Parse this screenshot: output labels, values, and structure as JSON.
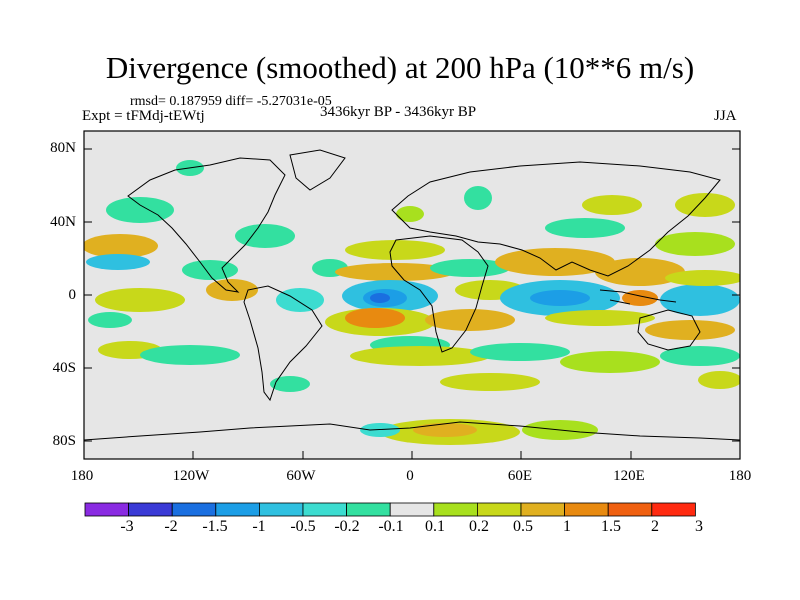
{
  "title": "Divergence (smoothed) at 200 hPa (10**6 m/s)",
  "stats": "rmsd= 0.187959 diff= -5.27031e-05",
  "experiment": "Expt = tFMdj-tEWtj",
  "period": "3436kyr BP - 3436kyr BP",
  "season": "JJA",
  "map": {
    "lat_ticks": [
      "80N",
      "40N",
      "0",
      "40S",
      "80S"
    ],
    "lon_ticks": [
      "180",
      "120W",
      "60W",
      "0",
      "60E",
      "120E",
      "180"
    ],
    "lat_range": [
      -90,
      90
    ],
    "lon_range": [
      -180,
      180
    ]
  },
  "colorbar": {
    "labels": [
      "-3",
      "-2",
      "-1.5",
      "-1",
      "-0.5",
      "-0.2",
      "-0.1",
      "0.1",
      "0.2",
      "0.5",
      "1",
      "1.5",
      "2",
      "3"
    ],
    "colors": [
      "#8a2be2",
      "#3a3ad6",
      "#1a6fe0",
      "#1c9ee6",
      "#2fc0e0",
      "#3cdcd0",
      "#33e0a0",
      "#e6e6e6",
      "#a8e01e",
      "#c8d81a",
      "#e0b020",
      "#e88a10",
      "#f06010",
      "#ff2a10"
    ]
  },
  "field_colors": {
    "background": "#e6e6e6",
    "neg_weak": "#33e0a0",
    "neg_mid": "#3cdcd0",
    "neg_strong": "#2fc0e0",
    "neg_core": "#1c9ee6",
    "neg_peak": "#1a6fe0",
    "pos_weak": "#a8e01e",
    "pos_mid": "#c8d81a",
    "pos_strong": "#e0b020",
    "pos_peak": "#e88a10"
  }
}
